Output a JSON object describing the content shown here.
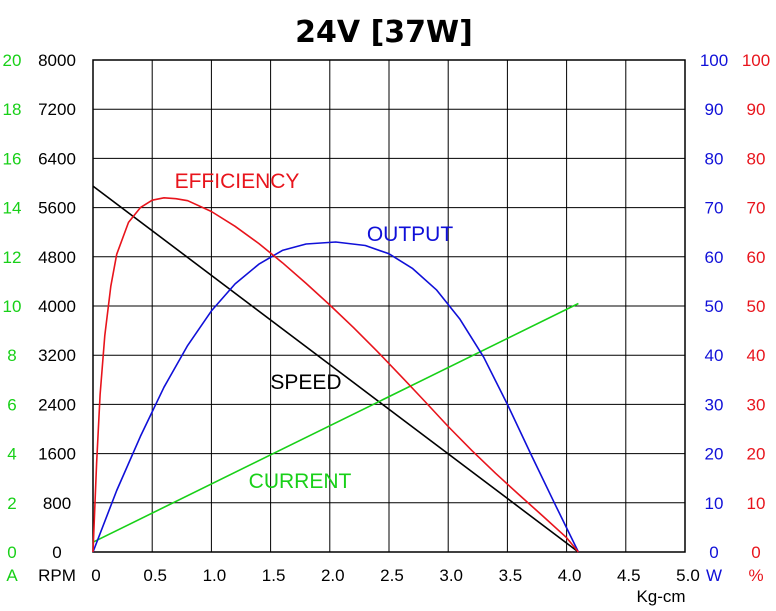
{
  "chart_data": {
    "type": "line",
    "title": "24V [37W]",
    "colors": {
      "speed": "#000000",
      "efficiency": "#e8141c",
      "output": "#1010d8",
      "current": "#18d018",
      "grid": "#000000"
    },
    "x": {
      "label": "Kg-cm",
      "lim": [
        0,
        5.0
      ],
      "ticks": [
        "0",
        "0.5",
        "1.0",
        "1.5",
        "2.0",
        "2.5",
        "3.0",
        "3.5",
        "4.0",
        "4.5",
        "5.0"
      ]
    },
    "axes": {
      "current": {
        "unit": "A",
        "lim": [
          0,
          20
        ],
        "ticks": [
          "0",
          "2",
          "4",
          "6",
          "8",
          "10",
          "12",
          "14",
          "16",
          "18",
          "20"
        ]
      },
      "speed": {
        "unit": "RPM",
        "lim": [
          0,
          8000
        ],
        "ticks": [
          "0",
          "800",
          "1600",
          "2400",
          "3200",
          "4000",
          "4800",
          "5600",
          "6400",
          "7200",
          "8000"
        ]
      },
      "output": {
        "unit": "W",
        "lim": [
          0,
          100
        ],
        "ticks": [
          "0",
          "10",
          "20",
          "30",
          "40",
          "50",
          "60",
          "70",
          "80",
          "90",
          "100"
        ]
      },
      "efficiency": {
        "unit": "%",
        "lim": [
          0,
          100
        ],
        "ticks": [
          "0",
          "10",
          "20",
          "30",
          "40",
          "50",
          "60",
          "70",
          "80",
          "90",
          "100"
        ]
      }
    },
    "series": [
      {
        "name": "SPEED",
        "axis": "speed",
        "points": [
          [
            0,
            5950
          ],
          [
            4.1,
            0
          ]
        ]
      },
      {
        "name": "CURRENT",
        "axis": "current",
        "points": [
          [
            0,
            0.4
          ],
          [
            4.1,
            10.1
          ]
        ]
      },
      {
        "name": "OUTPUT",
        "axis": "output",
        "points": [
          [
            0,
            0
          ],
          [
            0.2,
            12.5
          ],
          [
            0.4,
            23.5
          ],
          [
            0.6,
            33.5
          ],
          [
            0.8,
            42
          ],
          [
            1.0,
            49
          ],
          [
            1.2,
            54.5
          ],
          [
            1.4,
            58.5
          ],
          [
            1.6,
            61.3
          ],
          [
            1.8,
            62.6
          ],
          [
            2.05,
            63
          ],
          [
            2.3,
            62.3
          ],
          [
            2.5,
            60.6
          ],
          [
            2.7,
            57.6
          ],
          [
            2.9,
            53.3
          ],
          [
            3.1,
            47.3
          ],
          [
            3.3,
            39.6
          ],
          [
            3.5,
            30
          ],
          [
            3.7,
            19.8
          ],
          [
            3.9,
            9.8
          ],
          [
            4.1,
            0
          ]
        ]
      },
      {
        "name": "EFFICIENCY",
        "axis": "efficiency",
        "points": [
          [
            0,
            0
          ],
          [
            0.03,
            18
          ],
          [
            0.06,
            32
          ],
          [
            0.1,
            44
          ],
          [
            0.15,
            54
          ],
          [
            0.2,
            60.5
          ],
          [
            0.3,
            67
          ],
          [
            0.4,
            70
          ],
          [
            0.5,
            71.5
          ],
          [
            0.6,
            72
          ],
          [
            0.7,
            71.8
          ],
          [
            0.8,
            71.4
          ],
          [
            1.0,
            69.2
          ],
          [
            1.2,
            66.2
          ],
          [
            1.4,
            62.7
          ],
          [
            1.6,
            58.8
          ],
          [
            1.8,
            54.6
          ],
          [
            2.0,
            50.2
          ],
          [
            2.2,
            45.6
          ],
          [
            2.4,
            40.8
          ],
          [
            2.6,
            35.8
          ],
          [
            2.8,
            30.7
          ],
          [
            3.0,
            25.5
          ],
          [
            3.2,
            20.6
          ],
          [
            3.4,
            16
          ],
          [
            3.6,
            11.6
          ],
          [
            3.8,
            7.3
          ],
          [
            4.0,
            2.9
          ],
          [
            4.1,
            0
          ]
        ]
      }
    ]
  }
}
